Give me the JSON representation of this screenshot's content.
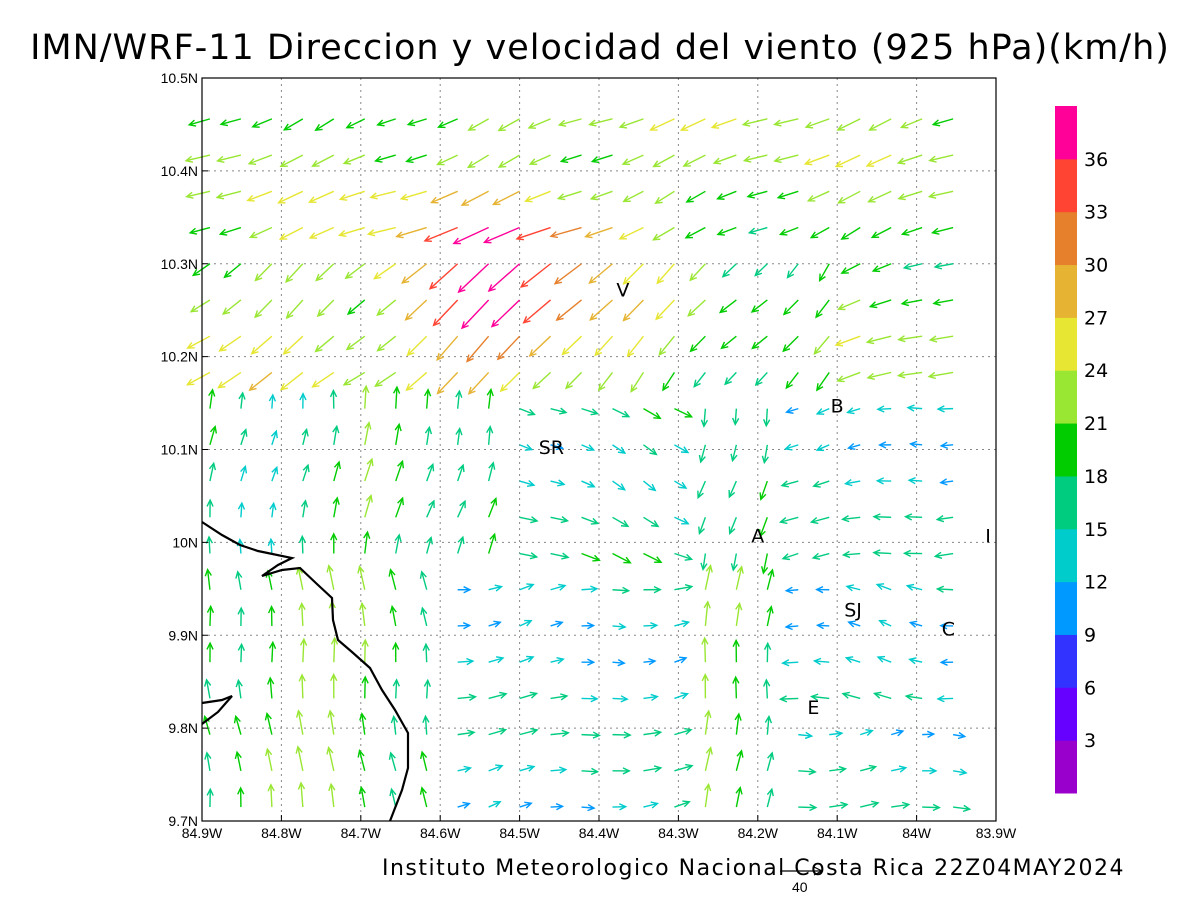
{
  "title": "IMN/WRF-11 Direccion y velocidad del viento (925 hPa)(km/h)",
  "footer": "Instituto Meteorologico Nacional Costa Rica 22Z04MAY2024",
  "reference_vector_label": "40",
  "map": {
    "lon_range": [
      -84.9,
      -83.9
    ],
    "lat_range": [
      9.7,
      10.5
    ],
    "x_tick_labels": [
      "84.9W",
      "84.8W",
      "84.7W",
      "84.6W",
      "84.5W",
      "84.4W",
      "84.3W",
      "84.2W",
      "84.1W",
      "84W",
      "83.9W"
    ],
    "y_tick_labels": [
      "9.7N",
      "9.8N",
      "9.9N",
      "10N",
      "10.1N",
      "10.2N",
      "10.3N",
      "10.4N",
      "10.5N"
    ],
    "grid": "dotted",
    "coastline_color": "#000000"
  },
  "places": [
    {
      "label": "V",
      "lon": -84.37,
      "lat": 10.265
    },
    {
      "label": "SR",
      "lon": -84.46,
      "lat": 10.095
    },
    {
      "label": "B",
      "lon": -84.1,
      "lat": 10.14
    },
    {
      "label": "A",
      "lon": -84.2,
      "lat": 10.0
    },
    {
      "label": "I",
      "lon": -83.91,
      "lat": 10.0
    },
    {
      "label": "SJ",
      "lon": -84.08,
      "lat": 9.92
    },
    {
      "label": "C",
      "lon": -83.96,
      "lat": 9.9
    },
    {
      "label": "E",
      "lon": -84.13,
      "lat": 9.815
    }
  ],
  "colorbar": {
    "labels": [
      "3",
      "6",
      "9",
      "12",
      "15",
      "18",
      "21",
      "24",
      "27",
      "30",
      "33",
      "36"
    ],
    "colors": [
      "#9900cc",
      "#6600ff",
      "#3333ff",
      "#0099ff",
      "#00cccc",
      "#00cc80",
      "#00cc00",
      "#99e633",
      "#e6e633",
      "#e6b333",
      "#e6802d",
      "#ff4433",
      "#ff0099"
    ]
  }
}
